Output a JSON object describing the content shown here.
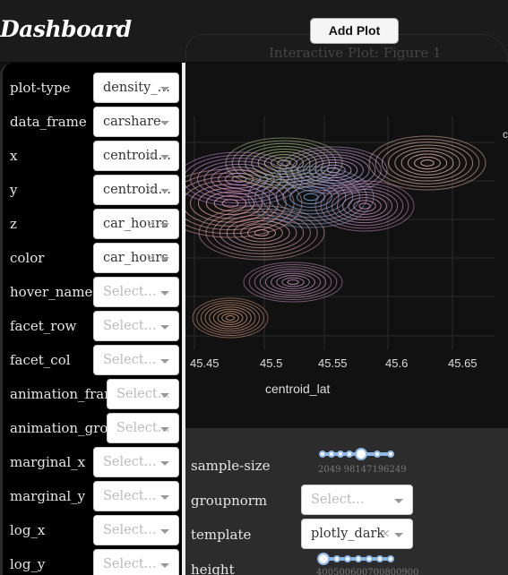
{
  "header": {
    "title": "Dashboard",
    "add_plot_label": "Add Plot",
    "figure_title": "Interactive Plot: Figure 1"
  },
  "sidebar": {
    "controls": [
      {
        "label": "plot-type",
        "value": "density_…",
        "placeholder": false
      },
      {
        "label": "data_frame",
        "value": "carshare",
        "placeholder": false
      },
      {
        "label": "x",
        "value": "centroid…",
        "placeholder": false,
        "clear": "×"
      },
      {
        "label": "y",
        "value": "centroid…",
        "placeholder": false,
        "clear": "×"
      },
      {
        "label": "z",
        "value": "car_hours",
        "placeholder": false,
        "clear": "×"
      },
      {
        "label": "color",
        "value": "car_hours",
        "placeholder": false,
        "clear": "×"
      },
      {
        "label": "hover_name",
        "value": "Select...",
        "placeholder": true
      },
      {
        "label": "facet_row",
        "value": "Select...",
        "placeholder": true
      },
      {
        "label": "facet_col",
        "value": "Select...",
        "placeholder": true
      },
      {
        "label": "animation_frame",
        "value": "Select...",
        "placeholder": true
      },
      {
        "label": "animation_group",
        "value": "Select...",
        "placeholder": true
      },
      {
        "label": "marginal_x",
        "value": "Select...",
        "placeholder": true
      },
      {
        "label": "marginal_y",
        "value": "Select...",
        "placeholder": true
      },
      {
        "label": "log_x",
        "value": "Select...",
        "placeholder": true
      },
      {
        "label": "log_y",
        "value": "Select...",
        "placeholder": true
      }
    ]
  },
  "plot": {
    "x_axis_label": "centroid_lat",
    "x_ticks": [
      "45.45",
      "45.5",
      "45.55",
      "45.6",
      "45.65"
    ],
    "legend_fragment": "c"
  },
  "lower_panel": {
    "sample_size_label": "sample-size",
    "sample_size_marks": "2049 98147196249",
    "groupnorm_label": "groupnorm",
    "groupnorm_value": "Select...",
    "template_label": "template",
    "template_value": "plotly_dark",
    "template_clear": "×",
    "height_label": "height",
    "height_marks": "400500600700800900"
  },
  "colors": {
    "page_bg": "#111111",
    "sidebar_bg": "#000000",
    "lower_bg": "#2c2c2c",
    "slider_accent": "#8fb7e8"
  }
}
